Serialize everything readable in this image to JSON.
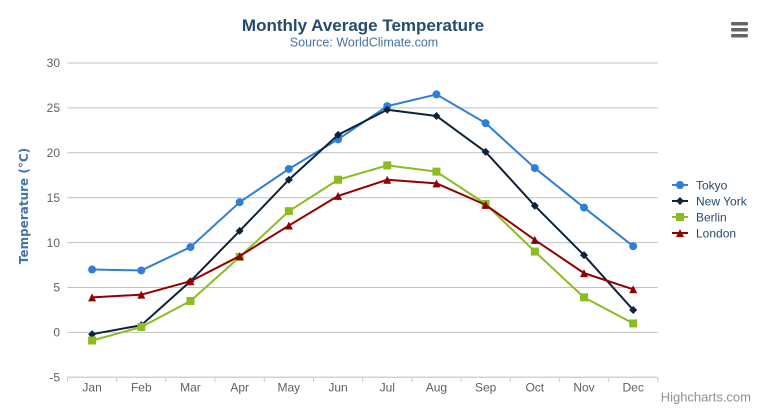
{
  "chart": {
    "title": "Monthly Average Temperature",
    "subtitle": "Source: WorldClimate.com",
    "y_axis_title": "Temperature (°C)",
    "credits": "Highcharts.com",
    "context_menu_icon": "hamburger-menu-icon",
    "background_color": "#ffffff"
  },
  "colors": {
    "title": "#274b6d",
    "subtitle": "#4572A7",
    "y_axis_title": "#4572A7",
    "axis_labels": "#606060",
    "grid_line": "#C0C0C0",
    "axis_line": "#C0D0E0",
    "legend_text": "#274b6d",
    "credits": "#8f8f8f",
    "menu_icon": "#666666"
  },
  "chart_data": {
    "type": "line",
    "title": "Monthly Average Temperature",
    "subtitle": "Source: WorldClimate.com",
    "xlabel": "",
    "ylabel": "Temperature (°C)",
    "categories": [
      "Jan",
      "Feb",
      "Mar",
      "Apr",
      "May",
      "Jun",
      "Jul",
      "Aug",
      "Sep",
      "Oct",
      "Nov",
      "Dec"
    ],
    "series": [
      {
        "name": "Tokyo",
        "color": "#2f7ed8",
        "marker": "circle",
        "values": [
          7.0,
          6.9,
          9.5,
          14.5,
          18.2,
          21.5,
          25.2,
          26.5,
          23.3,
          18.3,
          13.9,
          9.6
        ]
      },
      {
        "name": "New York",
        "color": "#0d233a",
        "marker": "diamond",
        "values": [
          -0.2,
          0.8,
          5.7,
          11.3,
          17.0,
          22.0,
          24.8,
          24.1,
          20.1,
          14.1,
          8.6,
          2.5
        ]
      },
      {
        "name": "Berlin",
        "color": "#8bbc21",
        "marker": "square",
        "values": [
          -0.9,
          0.6,
          3.5,
          8.4,
          13.5,
          17.0,
          18.6,
          17.9,
          14.3,
          9.0,
          3.9,
          1.0
        ]
      },
      {
        "name": "London",
        "color": "#910000",
        "marker": "triangle",
        "values": [
          3.9,
          4.2,
          5.7,
          8.5,
          11.9,
          15.2,
          17.0,
          16.6,
          14.2,
          10.3,
          6.6,
          4.8
        ]
      }
    ],
    "ylim": [
      -5,
      30
    ],
    "yticks": [
      -5,
      0,
      5,
      10,
      15,
      20,
      25,
      30
    ],
    "grid": true,
    "legend_position": "right",
    "legend_layout": "vertical"
  }
}
